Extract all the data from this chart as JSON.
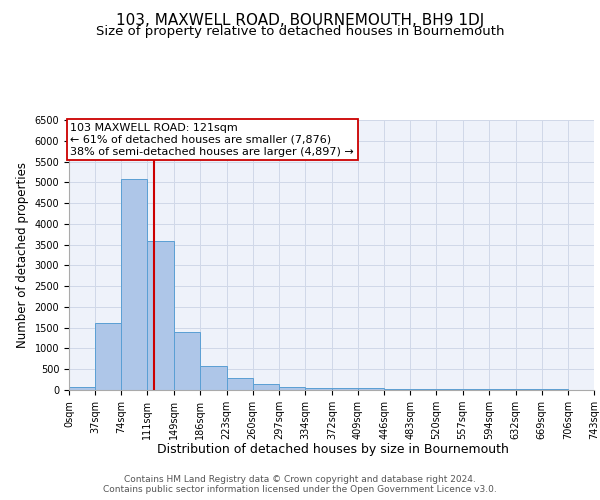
{
  "title": "103, MAXWELL ROAD, BOURNEMOUTH, BH9 1DJ",
  "subtitle": "Size of property relative to detached houses in Bournemouth",
  "xlabel": "Distribution of detached houses by size in Bournemouth",
  "ylabel": "Number of detached properties",
  "bar_edges": [
    0,
    37,
    74,
    111,
    149,
    186,
    223,
    260,
    297,
    334,
    372,
    409,
    446,
    483,
    520,
    557,
    594,
    632,
    669,
    706,
    743
  ],
  "bar_heights": [
    70,
    1620,
    5080,
    3580,
    1390,
    580,
    290,
    140,
    80,
    60,
    50,
    40,
    30,
    30,
    25,
    20,
    20,
    20,
    15,
    10
  ],
  "bar_color": "#aec6e8",
  "bar_edge_color": "#5a9fd4",
  "property_value": 121,
  "vline_color": "#cc0000",
  "annotation_line1": "103 MAXWELL ROAD: 121sqm",
  "annotation_line2": "← 61% of detached houses are smaller (7,876)",
  "annotation_line3": "38% of semi-detached houses are larger (4,897) →",
  "annotation_box_color": "#ffffff",
  "annotation_box_edge_color": "#cc0000",
  "ylim": [
    0,
    6500
  ],
  "yticks": [
    0,
    500,
    1000,
    1500,
    2000,
    2500,
    3000,
    3500,
    4000,
    4500,
    5000,
    5500,
    6000,
    6500
  ],
  "xtick_labels": [
    "0sqm",
    "37sqm",
    "74sqm",
    "111sqm",
    "149sqm",
    "186sqm",
    "223sqm",
    "260sqm",
    "297sqm",
    "334sqm",
    "372sqm",
    "409sqm",
    "446sqm",
    "483sqm",
    "520sqm",
    "557sqm",
    "594sqm",
    "632sqm",
    "669sqm",
    "706sqm",
    "743sqm"
  ],
  "grid_color": "#d0d8e8",
  "background_color": "#eef2fa",
  "footer_text": "Contains HM Land Registry data © Crown copyright and database right 2024.\nContains public sector information licensed under the Open Government Licence v3.0.",
  "title_fontsize": 11,
  "subtitle_fontsize": 9.5,
  "xlabel_fontsize": 9,
  "ylabel_fontsize": 8.5,
  "tick_fontsize": 7,
  "footer_fontsize": 6.5,
  "annot_fontsize": 8
}
